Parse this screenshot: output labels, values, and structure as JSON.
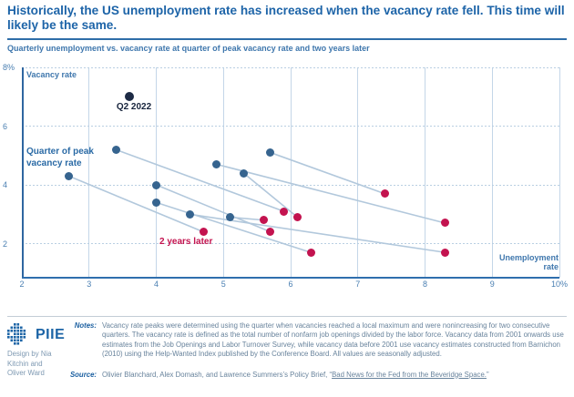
{
  "header": {
    "title": "Historically, the US unemployment rate has increased when the vacancy rate fell. This time will likely be the same.",
    "subtitle": "Quarterly unemployment vs. vacancy rate at quarter of peak vacancy rate and two years later"
  },
  "chart_data": {
    "type": "scatter",
    "title": "Quarterly unemployment vs. vacancy rate at quarter of peak vacancy rate and two years later",
    "xlabel": "Unemployment rate",
    "ylabel": "Vacancy rate",
    "xlim": [
      2,
      10
    ],
    "ylim": [
      0.84,
      8
    ],
    "grid": true,
    "x_ticks": [
      {
        "v": 2,
        "label": "2"
      },
      {
        "v": 3,
        "label": "3"
      },
      {
        "v": 4,
        "label": "4"
      },
      {
        "v": 5,
        "label": "5"
      },
      {
        "v": 6,
        "label": "6"
      },
      {
        "v": 7,
        "label": "7"
      },
      {
        "v": 8,
        "label": "8"
      },
      {
        "v": 9,
        "label": "9"
      },
      {
        "v": 10,
        "label": "10%"
      }
    ],
    "y_ticks": [
      {
        "v": 8,
        "label": "8%"
      },
      {
        "v": 6,
        "label": "6"
      },
      {
        "v": 4,
        "label": "4"
      },
      {
        "v": 2,
        "label": "2"
      }
    ],
    "series_labels": {
      "peak": "Quarter of peak vacancy rate",
      "later": "2 years later",
      "current": "Q2 2022"
    },
    "pairs": [
      {
        "peak": {
          "u": 2.7,
          "v": 4.3
        },
        "later": {
          "u": 4.7,
          "v": 2.4
        }
      },
      {
        "peak": {
          "u": 3.4,
          "v": 5.2
        },
        "later": {
          "u": 5.9,
          "v": 3.1
        }
      },
      {
        "peak": {
          "u": 4.0,
          "v": 4.0
        },
        "later": {
          "u": 5.7,
          "v": 2.4
        }
      },
      {
        "peak": {
          "u": 4.0,
          "v": 3.4
        },
        "later": {
          "u": 6.3,
          "v": 1.7
        }
      },
      {
        "peak": {
          "u": 4.5,
          "v": 3.0
        },
        "later": {
          "u": 8.3,
          "v": 1.7
        }
      },
      {
        "peak": {
          "u": 4.9,
          "v": 4.7
        },
        "later": {
          "u": 8.3,
          "v": 2.7
        }
      },
      {
        "peak": {
          "u": 5.1,
          "v": 2.9
        },
        "later": {
          "u": 5.6,
          "v": 2.8
        }
      },
      {
        "peak": {
          "u": 5.3,
          "v": 4.4
        },
        "later": {
          "u": 6.1,
          "v": 2.9
        }
      },
      {
        "peak": {
          "u": 5.7,
          "v": 5.1
        },
        "later": {
          "u": 7.4,
          "v": 3.7
        }
      }
    ],
    "current": {
      "label": "Q2 2022",
      "u": 3.6,
      "v": 7.0
    },
    "colors": {
      "peak": "#36648f",
      "later": "#c3134f",
      "current": "#1d2b45",
      "connector": "#b2c8dc"
    }
  },
  "footer": {
    "brand": "PIIE",
    "credit_lines": [
      "Design by Nia",
      "Kitchin and",
      "Oliver Ward"
    ],
    "notes_label": "Notes:",
    "notes": "Vacancy rate peaks were determined using the quarter when vacancies reached a local maximum and were nonincreasing for two consecutive quarters. The vacancy rate is defined as the total number of nonfarm job openings divided by the labor force. Vacancy data from 2001 onwards use estimates from the Job Openings and Labor Turnover Survey, while vacancy data before 2001 use vacancy estimates constructed from Barnichon (2010) using the Help-Wanted Index published by the Conference Board. All values are seasonally adjusted.",
    "source_label": "Source:",
    "source_prefix": "Olivier Blanchard, Alex Domash, and Lawrence Summers’s Policy Brief, “",
    "source_link": "Bad News for the Fed from the Beveridge Space.",
    "source_suffix": "”"
  }
}
